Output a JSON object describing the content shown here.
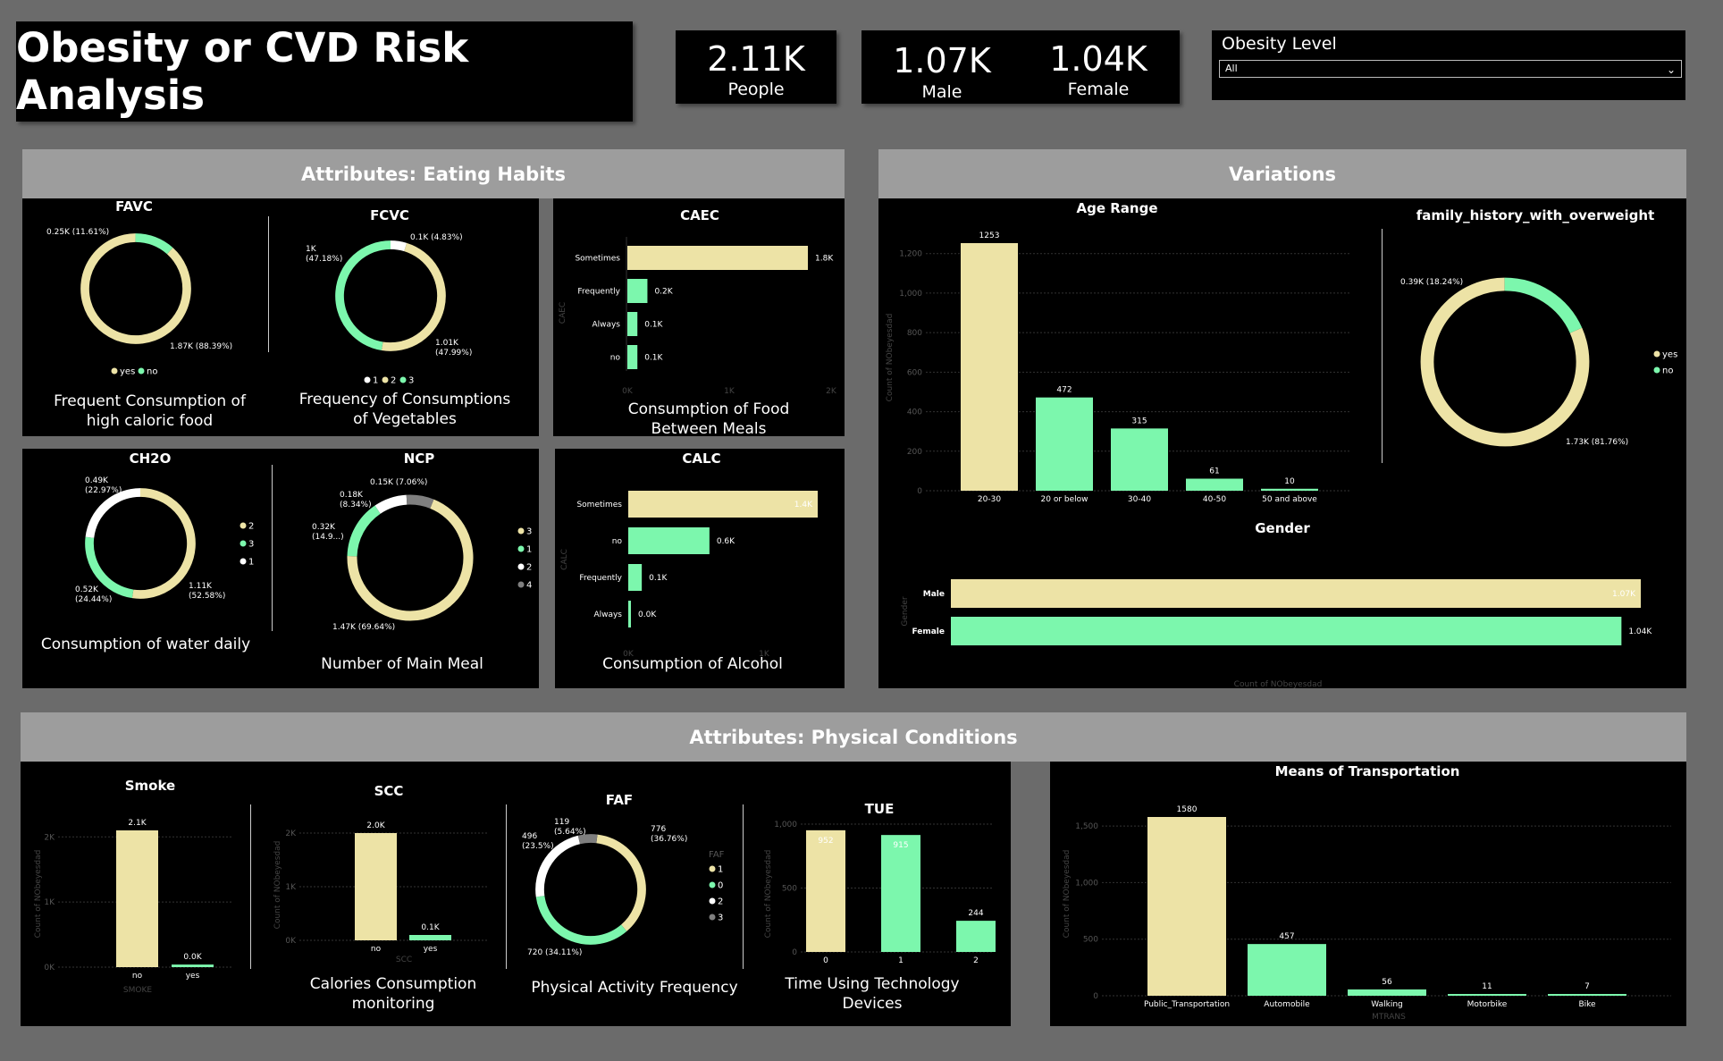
{
  "header": {
    "title": "Obesity or CVD Risk Analysis",
    "kpis": {
      "people_value": "2.11K",
      "people_label": "People",
      "male_value": "1.07K",
      "male_label": "Male",
      "female_value": "1.04K",
      "female_label": "Female"
    },
    "slicer": {
      "label": "Obesity Level",
      "selected": "All"
    }
  },
  "sections": {
    "eating": "Attributes: Eating Habits",
    "variations": "Variations",
    "physical": "Attributes: Physical Conditions"
  },
  "colors": {
    "cream": "#ede3a6",
    "green": "#7cf7ad",
    "white": "#ffffff",
    "gray": "#7f7f7f"
  },
  "chart_data": [
    {
      "id": "favc",
      "type": "pie",
      "title": "FAVC",
      "subtitle": "Frequent Consumption of high caloric food",
      "slices": [
        {
          "name": "yes",
          "value": 1870,
          "label": "1.87K (88.39%)"
        },
        {
          "name": "no",
          "value": 250,
          "label": "0.25K (11.61%)"
        }
      ],
      "legend": [
        "yes",
        "no"
      ],
      "legend_position": "bottom"
    },
    {
      "id": "fcvc",
      "type": "pie",
      "title": "FCVC",
      "subtitle": "Frequency of Consumptions of Vegetables",
      "slices": [
        {
          "name": "1",
          "value": 100,
          "label": "0.1K (4.83%)"
        },
        {
          "name": "2",
          "value": 1010,
          "label": "1.01K (47.99%)"
        },
        {
          "name": "3",
          "value": 1000,
          "label": "1K (47.18%)"
        }
      ],
      "legend": [
        "1",
        "2",
        "3"
      ],
      "legend_position": "bottom"
    },
    {
      "id": "caec",
      "type": "bar",
      "orientation": "horizontal",
      "title": "CAEC",
      "subtitle": "Consumption of Food Between Meals",
      "ylabel": "CAEC",
      "categories": [
        "Sometimes",
        "Frequently",
        "Always",
        "no"
      ],
      "values": [
        1800,
        200,
        100,
        100
      ],
      "labels": [
        "1.8K",
        "0.2K",
        "0.1K",
        "0.1K"
      ],
      "ticks": [
        "0K",
        "1K",
        "2K"
      ],
      "xlim": [
        0,
        2000
      ]
    },
    {
      "id": "ch2o",
      "type": "pie",
      "title": "CH2O",
      "subtitle": "Consumption of water daily",
      "slices": [
        {
          "name": "2",
          "value": 1110,
          "label": "1.11K (52.58%)"
        },
        {
          "name": "3",
          "value": 520,
          "label": "0.52K (24.44%)"
        },
        {
          "name": "1",
          "value": 490,
          "label": "0.49K (22.97%)"
        }
      ],
      "legend": [
        "2",
        "3",
        "1"
      ],
      "legend_position": "right"
    },
    {
      "id": "ncp",
      "type": "pie",
      "title": "NCP",
      "subtitle": "Number of Main Meal",
      "slices": [
        {
          "name": "3",
          "value": 1470,
          "label": "1.47K (69.64%)"
        },
        {
          "name": "1",
          "value": 320,
          "label": "0.32K (14.9...)"
        },
        {
          "name": "2",
          "value": 180,
          "label": "0.18K (8.34%)"
        },
        {
          "name": "4",
          "value": 150,
          "label": "0.15K (7.06%)"
        }
      ],
      "legend": [
        "3",
        "1",
        "2",
        "4"
      ],
      "legend_position": "right"
    },
    {
      "id": "calc",
      "type": "bar",
      "orientation": "horizontal",
      "title": "CALC",
      "subtitle": "Consumption of Alcohol",
      "ylabel": "CALC",
      "categories": [
        "Sometimes",
        "no",
        "Frequently",
        "Always"
      ],
      "values": [
        1400,
        600,
        100,
        0
      ],
      "labels": [
        "1.4K",
        "0.6K",
        "0.1K",
        "0.0K"
      ],
      "ticks": [
        "0K",
        "1K"
      ],
      "xlim": [
        0,
        1500
      ]
    },
    {
      "id": "age",
      "type": "bar",
      "title": "Age Range",
      "ylabel": "Count of NObeyesdad",
      "categories": [
        "20-30",
        "20 or below",
        "30-40",
        "40-50",
        "50 and above"
      ],
      "values": [
        1253,
        472,
        315,
        61,
        10
      ],
      "ticks": [
        "0",
        "200",
        "400",
        "600",
        "800",
        "1,000",
        "1,200"
      ],
      "ylim": [
        0,
        1300
      ]
    },
    {
      "id": "family",
      "type": "pie",
      "title": "family_history_with_overweight",
      "slices": [
        {
          "name": "yes",
          "value": 1730,
          "label": "1.73K (81.76%)"
        },
        {
          "name": "no",
          "value": 390,
          "label": "0.39K (18.24%)"
        }
      ],
      "legend": [
        "yes",
        "no"
      ],
      "legend_position": "right"
    },
    {
      "id": "gender",
      "type": "bar",
      "orientation": "horizontal",
      "title": "Gender",
      "xlabel": "Count of NObeyesdad",
      "ylabel": "Gender",
      "categories": [
        "Male",
        "Female"
      ],
      "values": [
        1070,
        1040
      ],
      "labels": [
        "1.07K",
        "1.04K"
      ],
      "xlim": [
        0,
        1070
      ]
    },
    {
      "id": "smoke",
      "type": "bar",
      "title": "Smoke",
      "xlabel": "SMOKE",
      "ylabel": "Count of NObeyesdad",
      "categories": [
        "no",
        "yes"
      ],
      "values": [
        2100,
        40
      ],
      "labels": [
        "2.1K",
        "0.0K"
      ],
      "ticks": [
        "0K",
        "1K",
        "2K"
      ],
      "ylim": [
        0,
        2100
      ]
    },
    {
      "id": "scc",
      "type": "bar",
      "title": "SCC",
      "subtitle": "Calories Consumption monitoring",
      "xlabel": "SCC",
      "ylabel": "Count of NObeyesdad",
      "categories": [
        "no",
        "yes"
      ],
      "values": [
        2000,
        100
      ],
      "labels": [
        "2.0K",
        "0.1K"
      ],
      "ticks": [
        "0K",
        "1K",
        "2K"
      ],
      "ylim": [
        0,
        2100
      ]
    },
    {
      "id": "faf",
      "type": "pie",
      "title": "FAF",
      "subtitle": "Physical Activity Frequency",
      "slices": [
        {
          "name": "1",
          "value": 776,
          "label": "776 (36.76%)"
        },
        {
          "name": "0",
          "value": 720,
          "label": "720 (34.11%)"
        },
        {
          "name": "2",
          "value": 496,
          "label": "496 (23.5%)"
        },
        {
          "name": "3",
          "value": 119,
          "label": "119 (5.64%)"
        }
      ],
      "legend_title": "FAF",
      "legend": [
        "1",
        "0",
        "2",
        "3"
      ],
      "legend_position": "right"
    },
    {
      "id": "tue",
      "type": "bar",
      "title": "TUE",
      "subtitle": "Time Using Technology Devices",
      "ylabel": "Count of NObeyesdad",
      "categories": [
        "0",
        "1",
        "2"
      ],
      "values": [
        952,
        915,
        244
      ],
      "ticks": [
        "0",
        "500",
        "1,000"
      ],
      "ylim": [
        0,
        1000
      ]
    },
    {
      "id": "mtrans",
      "type": "bar",
      "title": "Means of Transportation",
      "xlabel": "MTRANS",
      "ylabel": "Count of NObeyesdad",
      "categories": [
        "Public_Transportation",
        "Automobile",
        "Walking",
        "Motorbike",
        "Bike"
      ],
      "values": [
        1580,
        457,
        56,
        11,
        7
      ],
      "ticks": [
        "0",
        "500",
        "1,000",
        "1,500"
      ],
      "ylim": [
        0,
        1600
      ]
    }
  ]
}
